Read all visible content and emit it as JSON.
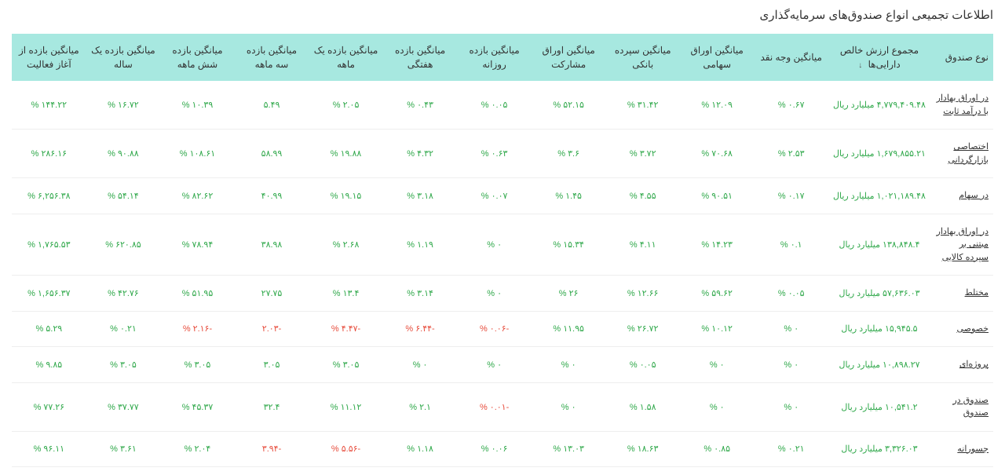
{
  "title": "اطلاعات تجمیعی انواع صندوق‌های سرمایه‌گذاری",
  "columns": {
    "c0": "نوع صندوق",
    "c1": "مجموع ارزش خالص دارایی‌ها",
    "c2": "میانگین وجه نقد",
    "c3": "میانگین اوراق سهامی",
    "c4": "میانگین سپرده بانکی",
    "c5": "میانگین اوراق مشارکت",
    "c6": "میانگین بازده روزانه",
    "c7": "میانگین بازده هفتگی",
    "c8": "میانگین بازده یک ماهه",
    "c9": "میانگین بازده سه ماهه",
    "c10": "میانگین بازده شش ماهه",
    "c11": "میانگین بازده یک ساله",
    "c12": "میانگین بازده از آغاز فعالیت"
  },
  "sort_indicator": "↓",
  "rows": [
    {
      "type": "در اوراق بهادار با درآمد ثابت",
      "asset": "۴,۷۷۹,۴۰۹.۴۸ میلیارد ریال",
      "v": [
        {
          "t": "۰.۶۷ %",
          "n": false
        },
        {
          "t": "۱۲.۰۹ %",
          "n": false
        },
        {
          "t": "۳۱.۴۲ %",
          "n": false
        },
        {
          "t": "۵۲.۱۵ %",
          "n": false
        },
        {
          "t": "۰.۰۵ %",
          "n": false
        },
        {
          "t": "۰.۴۳ %",
          "n": false
        },
        {
          "t": "۲.۰۵ %",
          "n": false
        },
        {
          "t": "۵.۴۹",
          "n": false
        },
        {
          "t": "۱۰.۳۹ %",
          "n": false
        },
        {
          "t": "۱۶.۷۲ %",
          "n": false
        },
        {
          "t": "۱۴۴.۲۲ %",
          "n": false
        }
      ]
    },
    {
      "type": "اختصاصی بازارگردانی",
      "asset": "۱,۶۷۹,۸۵۵.۲۱ میلیارد ریال",
      "v": [
        {
          "t": "۲.۵۳ %",
          "n": false
        },
        {
          "t": "۷۰.۶۸ %",
          "n": false
        },
        {
          "t": "۳.۷۲ %",
          "n": false
        },
        {
          "t": "۳.۶ %",
          "n": false
        },
        {
          "t": "۰.۶۳ %",
          "n": false
        },
        {
          "t": "۴.۳۲ %",
          "n": false
        },
        {
          "t": "۱۹.۸۸ %",
          "n": false
        },
        {
          "t": "۵۸.۹۹",
          "n": false
        },
        {
          "t": "۱۰۸.۶۱ %",
          "n": false
        },
        {
          "t": "۹۰.۸۸ %",
          "n": false
        },
        {
          "t": "۲۸۶.۱۶ %",
          "n": false
        }
      ]
    },
    {
      "type": "در سهام",
      "asset": "۱,۰۲۱,۱۸۹.۴۸ میلیارد ریال",
      "v": [
        {
          "t": "۰.۱۷ %",
          "n": false
        },
        {
          "t": "۹۰.۵۱ %",
          "n": false
        },
        {
          "t": "۴.۵۵ %",
          "n": false
        },
        {
          "t": "۱.۴۵ %",
          "n": false
        },
        {
          "t": "۰.۰۷ %",
          "n": false
        },
        {
          "t": "۳.۱۸ %",
          "n": false
        },
        {
          "t": "۱۹.۱۵ %",
          "n": false
        },
        {
          "t": "۴۰.۹۹",
          "n": false
        },
        {
          "t": "۸۲.۶۲ %",
          "n": false
        },
        {
          "t": "۵۴.۱۴ %",
          "n": false
        },
        {
          "t": "۶,۲۵۶.۳۸ %",
          "n": false
        }
      ]
    },
    {
      "type": "در اوراق بهادار مبتنی بر سپرده کالایی",
      "asset": "۱۳۸,۸۴۸.۴ میلیارد ریال",
      "v": [
        {
          "t": "۰.۱ %",
          "n": false
        },
        {
          "t": "۱۴.۲۳ %",
          "n": false
        },
        {
          "t": "۴.۱۱ %",
          "n": false
        },
        {
          "t": "۱۵.۳۴ %",
          "n": false
        },
        {
          "t": "۰ %",
          "n": false
        },
        {
          "t": "۱.۱۹ %",
          "n": false
        },
        {
          "t": "۲.۶۸ %",
          "n": false
        },
        {
          "t": "۳۸.۹۸",
          "n": false
        },
        {
          "t": "۷۸.۹۴ %",
          "n": false
        },
        {
          "t": "۶۲۰.۸۵ %",
          "n": false
        },
        {
          "t": "۱,۷۶۵.۵۳ %",
          "n": false
        }
      ]
    },
    {
      "type": "مختلط",
      "asset": "۵۷,۶۳۶.۰۳ میلیارد ریال",
      "v": [
        {
          "t": "۰.۰۵ %",
          "n": false
        },
        {
          "t": "۵۹.۶۲ %",
          "n": false
        },
        {
          "t": "۱۲.۶۶ %",
          "n": false
        },
        {
          "t": "۲۶ %",
          "n": false
        },
        {
          "t": "۰ %",
          "n": false
        },
        {
          "t": "۳.۱۴ %",
          "n": false
        },
        {
          "t": "۱۳.۴ %",
          "n": false
        },
        {
          "t": "۲۷.۷۵",
          "n": false
        },
        {
          "t": "۵۱.۹۵ %",
          "n": false
        },
        {
          "t": "۴۲.۷۶ %",
          "n": false
        },
        {
          "t": "۱,۶۵۶.۳۷ %",
          "n": false
        }
      ]
    },
    {
      "type": "خصوصی",
      "asset": "۱۵,۹۴۵.۵ میلیارد ریال",
      "v": [
        {
          "t": "۰ %",
          "n": false
        },
        {
          "t": "۱۰.۱۲ %",
          "n": false
        },
        {
          "t": "۲۶.۷۲ %",
          "n": false
        },
        {
          "t": "۱۱.۹۵ %",
          "n": false
        },
        {
          "t": "-۰.۰۶ %",
          "n": true
        },
        {
          "t": "-۶.۴۴ %",
          "n": true
        },
        {
          "t": "-۴.۴۷ %",
          "n": true
        },
        {
          "t": "-۲.۰۳",
          "n": true
        },
        {
          "t": "-۲.۱۶ %",
          "n": true
        },
        {
          "t": "۰.۲۱ %",
          "n": false
        },
        {
          "t": "۵.۲۹ %",
          "n": false
        }
      ]
    },
    {
      "type": "پروژه‌ای",
      "asset": "۱۰,۸۹۸.۲۷ میلیارد ریال",
      "v": [
        {
          "t": "۰ %",
          "n": false
        },
        {
          "t": "۰ %",
          "n": false
        },
        {
          "t": "۰.۰۵ %",
          "n": false
        },
        {
          "t": "۰ %",
          "n": false
        },
        {
          "t": "۰ %",
          "n": false
        },
        {
          "t": "۰ %",
          "n": false
        },
        {
          "t": "۳.۰۵ %",
          "n": false
        },
        {
          "t": "۳.۰۵",
          "n": false
        },
        {
          "t": "۳.۰۵ %",
          "n": false
        },
        {
          "t": "۳.۰۵ %",
          "n": false
        },
        {
          "t": "۹.۸۵ %",
          "n": false
        }
      ]
    },
    {
      "type": "صندوق در صندوق",
      "asset": "۱۰,۵۴۱.۲ میلیارد ریال",
      "v": [
        {
          "t": "۰ %",
          "n": false
        },
        {
          "t": "۰ %",
          "n": false
        },
        {
          "t": "۱.۵۸ %",
          "n": false
        },
        {
          "t": "۰ %",
          "n": false
        },
        {
          "t": "-۰.۰۱ %",
          "n": true
        },
        {
          "t": "۲.۱ %",
          "n": false
        },
        {
          "t": "۱۱.۱۲ %",
          "n": false
        },
        {
          "t": "۳۲.۴",
          "n": false
        },
        {
          "t": "۴۵.۳۷ %",
          "n": false
        },
        {
          "t": "۳۷.۷۷ %",
          "n": false
        },
        {
          "t": "۷۷.۲۶ %",
          "n": false
        }
      ]
    },
    {
      "type": "جسورانه",
      "asset": "۳,۳۲۶.۰۳ میلیارد ریال",
      "v": [
        {
          "t": "۰.۲۱ %",
          "n": false
        },
        {
          "t": "۰.۸۵ %",
          "n": false
        },
        {
          "t": "۱۸.۶۳ %",
          "n": false
        },
        {
          "t": "۱۳.۰۳ %",
          "n": false
        },
        {
          "t": "۰.۰۶ %",
          "n": false
        },
        {
          "t": "۱.۱۸ %",
          "n": false
        },
        {
          "t": "-۵.۵۶ %",
          "n": true
        },
        {
          "t": "-۳.۹۴",
          "n": true
        },
        {
          "t": "۲.۰۴ %",
          "n": false
        },
        {
          "t": "۳.۶۱ %",
          "n": false
        },
        {
          "t": "۹۶.۱۱ %",
          "n": false
        }
      ]
    }
  ]
}
